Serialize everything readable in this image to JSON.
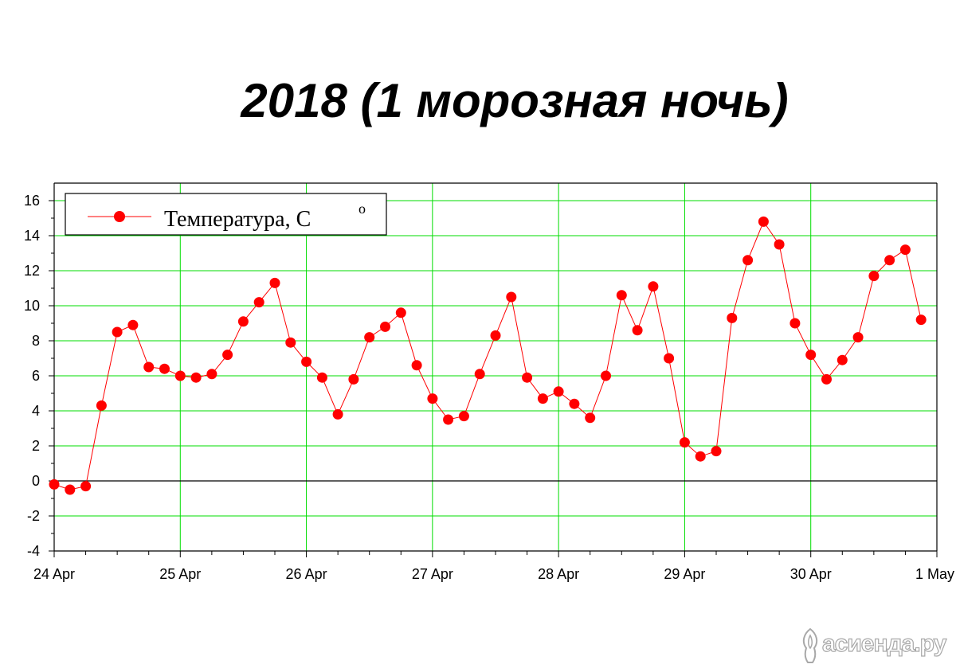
{
  "chart_data": {
    "type": "line",
    "title": "2018 (1 морозная ночь)",
    "xlabel": "",
    "ylabel": "",
    "ylim": [
      -4,
      17
    ],
    "yticks": [
      -4,
      -2,
      0,
      2,
      4,
      6,
      8,
      10,
      12,
      14,
      16
    ],
    "xlim": [
      "2018-04-24",
      "2018-05-01"
    ],
    "xtick_labels": [
      "24 Apr",
      "25 Apr",
      "26 Apr",
      "27 Apr",
      "28 Apr",
      "29 Apr",
      "30 Apr",
      "1 May"
    ],
    "grid": true,
    "grid_color": "#00dd00",
    "zero_line": true,
    "legend_position": "top-left",
    "series": [
      {
        "name": "Температура, С",
        "name_superscript": "о",
        "color": "#ff0000",
        "marker": "circle",
        "x": [
          "24 Apr 00:00",
          "24 Apr 03:00",
          "24 Apr 06:00",
          "24 Apr 09:00",
          "24 Apr 12:00",
          "24 Apr 15:00",
          "24 Apr 18:00",
          "24 Apr 21:00",
          "25 Apr 00:00",
          "25 Apr 03:00",
          "25 Apr 06:00",
          "25 Apr 09:00",
          "25 Apr 12:00",
          "25 Apr 15:00",
          "25 Apr 18:00",
          "25 Apr 21:00",
          "26 Apr 00:00",
          "26 Apr 03:00",
          "26 Apr 06:00",
          "26 Apr 09:00",
          "26 Apr 12:00",
          "26 Apr 15:00",
          "26 Apr 18:00",
          "26 Apr 21:00",
          "27 Apr 00:00",
          "27 Apr 03:00",
          "27 Apr 06:00",
          "27 Apr 09:00",
          "27 Apr 12:00",
          "27 Apr 15:00",
          "27 Apr 18:00",
          "27 Apr 21:00",
          "28 Apr 00:00",
          "28 Apr 03:00",
          "28 Apr 06:00",
          "28 Apr 09:00",
          "28 Apr 12:00",
          "28 Apr 15:00",
          "28 Apr 18:00",
          "28 Apr 21:00",
          "29 Apr 00:00",
          "29 Apr 03:00",
          "29 Apr 06:00",
          "29 Apr 09:00",
          "29 Apr 12:00",
          "29 Apr 15:00",
          "29 Apr 18:00",
          "29 Apr 21:00",
          "30 Apr 00:00",
          "30 Apr 03:00",
          "30 Apr 06:00",
          "30 Apr 09:00",
          "30 Apr 12:00",
          "30 Apr 15:00",
          "30 Apr 18:00",
          "30 Apr 21:00"
        ],
        "values": [
          -0.2,
          -0.5,
          -0.3,
          4.3,
          8.5,
          8.9,
          6.5,
          6.4,
          6.0,
          5.9,
          6.1,
          7.2,
          9.1,
          10.2,
          11.3,
          7.9,
          6.8,
          5.9,
          3.8,
          5.8,
          8.2,
          8.8,
          9.6,
          6.6,
          4.7,
          3.5,
          3.7,
          6.1,
          8.3,
          10.5,
          5.9,
          4.7,
          5.1,
          4.4,
          3.6,
          6.0,
          10.6,
          8.6,
          11.1,
          7.0,
          2.2,
          1.4,
          1.7,
          9.3,
          12.6,
          14.8,
          13.5,
          9.0,
          7.2,
          5.8,
          6.9,
          8.2,
          11.7,
          12.6,
          13.2,
          9.2
        ]
      }
    ]
  },
  "watermark": {
    "text": "асиенда.ру",
    "icon": "tulip-logo-icon"
  }
}
